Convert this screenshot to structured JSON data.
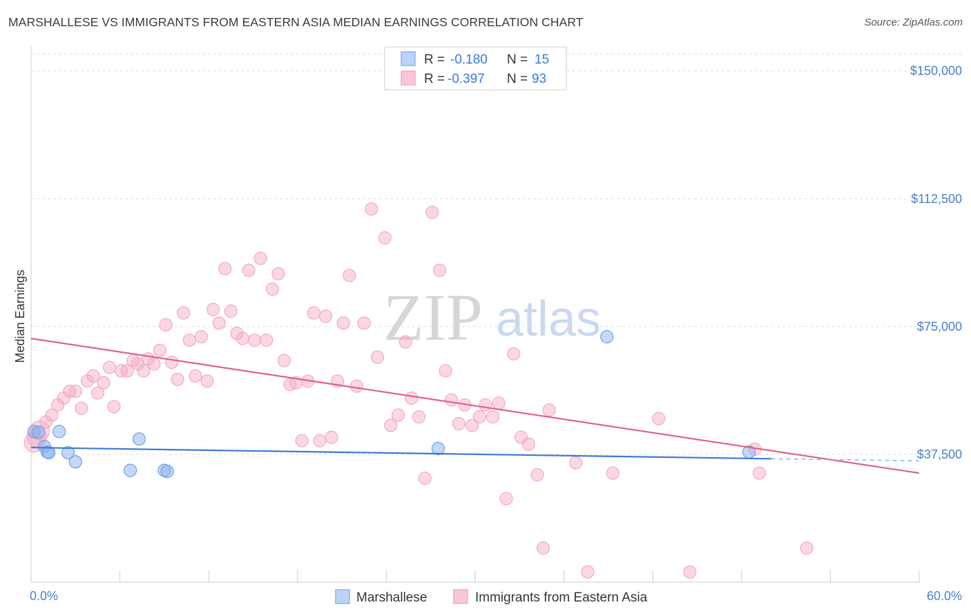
{
  "title": "MARSHALLESE VS IMMIGRANTS FROM EASTERN ASIA MEDIAN EARNINGS CORRELATION CHART",
  "source": "Source: ZipAtlas.com",
  "colors": {
    "blue": "#8ab4f0",
    "blue_line": "#3c78d8",
    "pink": "#f4a9c0",
    "pink_line": "#e0608a",
    "grid": "#dddddd",
    "label": "#4a7fd0"
  },
  "chart_data": {
    "type": "scatter",
    "title": "MARSHALLESE VS IMMIGRANTS FROM EASTERN ASIA MEDIAN EARNINGS CORRELATION CHART",
    "xlabel": "",
    "ylabel": "Median Earnings",
    "xlim": [
      0,
      60
    ],
    "ylim": [
      0,
      155000
    ],
    "x_tick_labels": [
      "0.0%",
      "60.0%"
    ],
    "y_ticks": [
      37500,
      75000,
      112500,
      150000
    ],
    "y_tick_labels": [
      "$37,500",
      "$75,000",
      "$112,500",
      "$150,000"
    ],
    "grid": true,
    "legend": {
      "position": "top-center",
      "entries": [
        {
          "series": "Marshallese",
          "r_label": "R =",
          "r_value": "-0.180",
          "n_label": "N =",
          "n_value": "15"
        },
        {
          "series": "Immigrants from Eastern Asia",
          "r_label": "R =",
          "r_value": "-0.397",
          "n_label": "N =",
          "n_value": "93"
        }
      ]
    },
    "series": [
      {
        "name": "Marshallese",
        "color": "#8ab4f0",
        "trend": {
          "x0": 0,
          "y0": 39500,
          "x1": 50,
          "y1": 36200,
          "dash_to_x": 60,
          "dash_to_y": 35600
        },
        "points": [
          [
            0.2,
            44200
          ],
          [
            0.5,
            44000
          ],
          [
            0.9,
            39800
          ],
          [
            1.1,
            38200
          ],
          [
            1.2,
            38000
          ],
          [
            1.9,
            44200
          ],
          [
            2.5,
            38000
          ],
          [
            3.0,
            35300
          ],
          [
            6.7,
            32800
          ],
          [
            7.3,
            42000
          ],
          [
            9.0,
            32800
          ],
          [
            9.2,
            32500
          ],
          [
            27.5,
            39200
          ],
          [
            48.5,
            38200
          ],
          [
            38.9,
            72000
          ]
        ]
      },
      {
        "name": "Immigrants from Eastern Asia",
        "color": "#f4a9c0",
        "trend": {
          "x0": 0,
          "y0": 71500,
          "x1": 60,
          "y1": 32000
        },
        "points": [
          [
            0.2,
            41000
          ],
          [
            0.4,
            42500
          ],
          [
            0.6,
            44500
          ],
          [
            1.0,
            47000
          ],
          [
            1.4,
            49000
          ],
          [
            1.8,
            52000
          ],
          [
            2.2,
            54000
          ],
          [
            2.6,
            56000
          ],
          [
            3.0,
            56000
          ],
          [
            3.4,
            51000
          ],
          [
            3.8,
            59000
          ],
          [
            4.2,
            60500
          ],
          [
            4.5,
            55500
          ],
          [
            4.9,
            58500
          ],
          [
            5.3,
            63000
          ],
          [
            5.6,
            51500
          ],
          [
            6.1,
            62000
          ],
          [
            6.5,
            62000
          ],
          [
            6.9,
            65000
          ],
          [
            7.2,
            64000
          ],
          [
            7.6,
            62000
          ],
          [
            7.9,
            65500
          ],
          [
            8.3,
            64000
          ],
          [
            8.7,
            68000
          ],
          [
            9.1,
            75500
          ],
          [
            9.5,
            64500
          ],
          [
            9.9,
            59500
          ],
          [
            10.3,
            79000
          ],
          [
            10.7,
            71000
          ],
          [
            11.1,
            60500
          ],
          [
            11.5,
            72000
          ],
          [
            11.9,
            59000
          ],
          [
            12.3,
            80000
          ],
          [
            12.7,
            76000
          ],
          [
            13.1,
            92000
          ],
          [
            13.5,
            79500
          ],
          [
            13.9,
            73000
          ],
          [
            14.3,
            71500
          ],
          [
            14.7,
            91500
          ],
          [
            15.1,
            71000
          ],
          [
            15.5,
            95000
          ],
          [
            15.9,
            71000
          ],
          [
            16.3,
            86000
          ],
          [
            16.7,
            90500
          ],
          [
            17.1,
            65000
          ],
          [
            17.5,
            58000
          ],
          [
            17.9,
            58500
          ],
          [
            18.3,
            41500
          ],
          [
            18.7,
            59000
          ],
          [
            19.1,
            79000
          ],
          [
            19.5,
            41500
          ],
          [
            19.9,
            78000
          ],
          [
            20.3,
            42500
          ],
          [
            20.7,
            59000
          ],
          [
            21.1,
            76000
          ],
          [
            21.5,
            90000
          ],
          [
            22.0,
            57500
          ],
          [
            22.5,
            76000
          ],
          [
            23.0,
            109500
          ],
          [
            23.4,
            66000
          ],
          [
            23.9,
            101000
          ],
          [
            24.3,
            46000
          ],
          [
            24.8,
            49000
          ],
          [
            25.3,
            70500
          ],
          [
            25.7,
            54000
          ],
          [
            26.2,
            48500
          ],
          [
            26.6,
            30500
          ],
          [
            27.1,
            108500
          ],
          [
            27.6,
            91500
          ],
          [
            28.0,
            62000
          ],
          [
            28.4,
            53500
          ],
          [
            28.9,
            46500
          ],
          [
            29.3,
            52000
          ],
          [
            29.8,
            46000
          ],
          [
            30.3,
            48500
          ],
          [
            30.7,
            52000
          ],
          [
            31.2,
            48500
          ],
          [
            31.6,
            52500
          ],
          [
            32.1,
            24500
          ],
          [
            32.6,
            67000
          ],
          [
            33.1,
            42500
          ],
          [
            33.6,
            40500
          ],
          [
            34.2,
            31500
          ],
          [
            34.6,
            10000
          ],
          [
            35.0,
            50500
          ],
          [
            36.8,
            35000
          ],
          [
            37.6,
            3000
          ],
          [
            39.3,
            32000
          ],
          [
            42.4,
            48000
          ],
          [
            44.5,
            3000
          ],
          [
            48.9,
            39000
          ],
          [
            49.2,
            32000
          ],
          [
            52.4,
            10000
          ]
        ]
      }
    ]
  },
  "bottom_legend": {
    "items": [
      {
        "label": "Marshallese"
      },
      {
        "label": "Immigrants from Eastern Asia"
      }
    ]
  },
  "watermark": {
    "zip": "ZIP",
    "atlas": "atlas"
  }
}
